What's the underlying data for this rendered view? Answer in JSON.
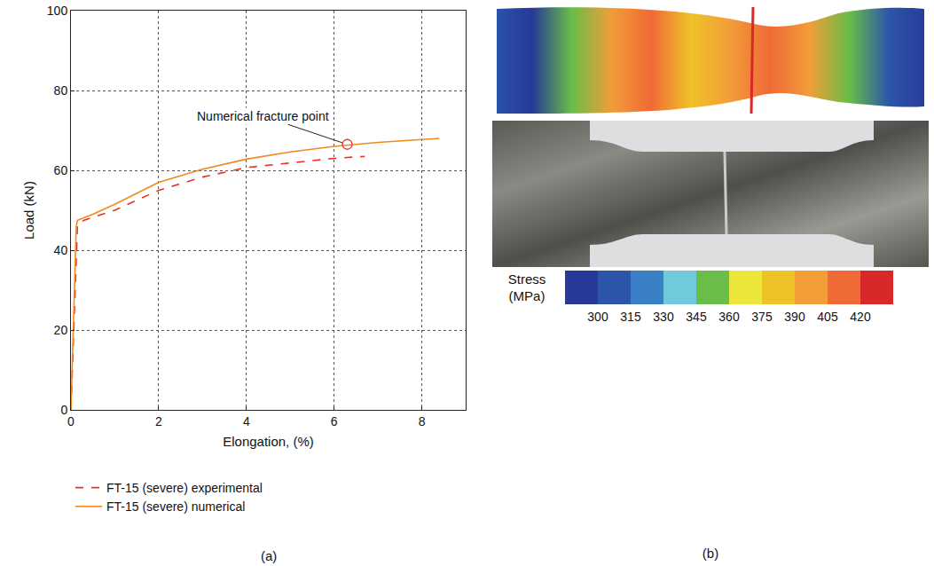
{
  "chart_data": {
    "type": "line",
    "panel_label": "(a)",
    "x_label": "Elongation, (%)",
    "y_label": "Load (kN)",
    "xlim": [
      0,
      9
    ],
    "xticks": [
      0,
      2,
      4,
      6,
      8
    ],
    "ylim": [
      0,
      100
    ],
    "yticks": [
      0,
      20,
      40,
      60,
      80,
      100
    ],
    "grid": true,
    "legend": "bottom",
    "series": [
      {
        "name": "FT-15 (severe) experimental",
        "color": "#e8322d",
        "line_style": "dash",
        "x": [
          0,
          0.15,
          0.3,
          1,
          2,
          3,
          4,
          5,
          6,
          6.7
        ],
        "values": [
          0,
          46.5,
          47.5,
          50,
          55,
          58.3,
          60.7,
          61.8,
          63,
          63.5
        ]
      },
      {
        "name": "FT-15 (severe) numerical",
        "color": "#f08a1e",
        "line_style": "solid",
        "x": [
          0,
          0.12,
          0.15,
          0.5,
          1,
          2,
          3,
          4,
          5,
          6,
          7,
          8,
          8.4
        ],
        "values": [
          0,
          46,
          47.5,
          49,
          51.5,
          57,
          60.3,
          62.8,
          64.6,
          66,
          67,
          67.8,
          68
        ]
      }
    ],
    "annotations": [
      {
        "text": "Numerical fracture point",
        "x": 6.3,
        "y": 66.5,
        "marker": "circle-open",
        "color": "#e8322d"
      }
    ]
  },
  "panel_b": {
    "panel_label": "(b)",
    "colorbar": {
      "title": "Stress (MPa)",
      "colors": [
        "#27399a",
        "#2c55aa",
        "#3a80c6",
        "#6fcadc",
        "#69bd48",
        "#ece63a",
        "#efc22a",
        "#f29d38",
        "#ef6a36",
        "#d8282a"
      ],
      "ticks": [
        300,
        315,
        330,
        345,
        360,
        375,
        390,
        405,
        420
      ]
    }
  }
}
